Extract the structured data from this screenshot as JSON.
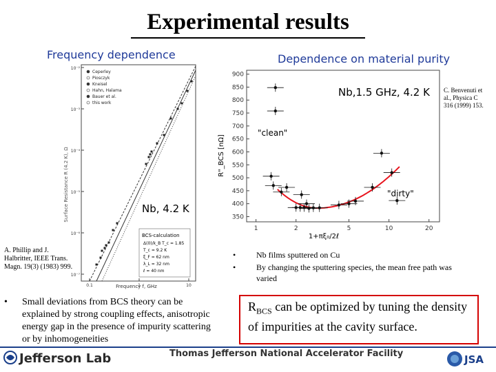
{
  "title": "Experimental results",
  "left_section": {
    "heading": "Frequency dependence"
  },
  "right_section": {
    "heading": "Dependence on material purity"
  },
  "left_plot": {
    "annotation": "Nb, 4.2 K",
    "ylabel": "Surface Resistance  R (4.2 K), Ω",
    "xlabel": "Frequency  f, GHz",
    "yticks": [
      "10⁻²",
      "10⁻³",
      "10⁻⁴",
      "10⁻⁵",
      "10⁻⁶",
      "10⁻⁷"
    ],
    "xticks": [
      "0.1",
      "1",
      "10"
    ],
    "legend": [
      "Ceperley",
      "Piosczyk",
      "Kneisel",
      "Hahn, Halama",
      "Bauer et al.",
      "this work"
    ],
    "inset_title": "BCS-calculation",
    "inset_lines": [
      "Δ(0)/k_B T_c = 1.85",
      "T_c = 9.2 K",
      "ξ_F = 62 nm",
      "λ_L = 32 nm",
      "ℓ = 40 nm"
    ]
  },
  "right_plot": {
    "annotation": "Nb,1.5 GHz, 4.2 K",
    "clean_label": "\"clean\"",
    "dirty_label": "\"dirty\"",
    "ylabel": "R\"_BCS [nΩ]",
    "xlabel": "1+πξ₀/2ℓ",
    "yticks": [
      "900",
      "850",
      "800",
      "750",
      "700",
      "650",
      "600",
      "550",
      "500",
      "450",
      "400",
      "350"
    ],
    "xticks": [
      "1",
      "2",
      "5",
      "10",
      "20"
    ],
    "curve_color": "#e8141e",
    "points": [
      {
        "x": 1.4,
        "y": 848
      },
      {
        "x": 1.4,
        "y": 758
      },
      {
        "x": 1.3,
        "y": 506
      },
      {
        "x": 1.35,
        "y": 470
      },
      {
        "x": 1.7,
        "y": 463
      },
      {
        "x": 1.55,
        "y": 445
      },
      {
        "x": 2.2,
        "y": 435
      },
      {
        "x": 2.4,
        "y": 400
      },
      {
        "x": 2.0,
        "y": 385
      },
      {
        "x": 2.15,
        "y": 385
      },
      {
        "x": 2.3,
        "y": 385
      },
      {
        "x": 2.5,
        "y": 382
      },
      {
        "x": 2.7,
        "y": 384
      },
      {
        "x": 3.0,
        "y": 384
      },
      {
        "x": 4.2,
        "y": 395
      },
      {
        "x": 5.0,
        "y": 400
      },
      {
        "x": 5.6,
        "y": 410
      },
      {
        "x": 7.5,
        "y": 463
      },
      {
        "x": 8.8,
        "y": 595
      },
      {
        "x": 10.5,
        "y": 520
      },
      {
        "x": 11.5,
        "y": 412
      }
    ]
  },
  "references": {
    "left_lines": [
      "A. Phillip and J.",
      "Halbritter, IEEE Trans.",
      "Magn. 19(3) (1983) 999."
    ],
    "right_lines": [
      "C. Benvenuti et",
      "al., Physica C",
      "316 (1999) 153."
    ]
  },
  "bullets_left": [
    "Small deviations from BCS theory can be explained by strong coupling effects, anisotropic energy gap in the presence of impurity scattering or by inhomogeneities"
  ],
  "bullets_right": [
    "Nb films sputtered on Cu",
    "By changing the sputtering species, the mean free path was varied"
  ],
  "conclusion": {
    "lead": "R",
    "sub": "BCS",
    "rest": " can be optimized by tuning the density of impurities at the cavity surface."
  },
  "footer": {
    "logo": "Jefferson Lab",
    "facility": "Thomas Jefferson National Accelerator Facility"
  },
  "colors": {
    "heading": "#1f3a99",
    "box_border": "#d40000",
    "footer_rule": "#1a3f8a"
  }
}
